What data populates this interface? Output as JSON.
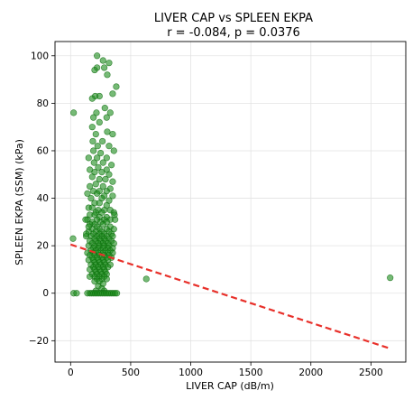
{
  "chart_data": {
    "type": "scatter",
    "title": "LIVER CAP vs SPLEEN EKPA",
    "subtitle": "r = -0.084, p = 0.0376",
    "xlabel": "LIVER CAP (dB/m)",
    "ylabel": "SPLEEN EKPA (SSM) (kPa)",
    "xlim": [
      -130,
      2790
    ],
    "ylim": [
      -29,
      106
    ],
    "xticks": [
      0,
      500,
      1000,
      1500,
      2000,
      2500
    ],
    "yticks": [
      -20,
      0,
      20,
      40,
      60,
      80,
      100
    ],
    "grid": true,
    "colors": {
      "points": "#1a8c1a",
      "trend": "#e8302a"
    },
    "trendline": {
      "x": [
        0,
        2660
      ],
      "y": [
        20.5,
        -23.3
      ],
      "style": "dashed"
    },
    "points": [
      [
        220,
        100
      ],
      [
        270,
        98
      ],
      [
        320,
        97
      ],
      [
        220,
        95
      ],
      [
        280,
        95
      ],
      [
        200,
        94
      ],
      [
        305,
        92
      ],
      [
        380,
        87
      ],
      [
        205,
        83
      ],
      [
        240,
        83
      ],
      [
        180,
        82
      ],
      [
        350,
        84
      ],
      [
        215,
        76
      ],
      [
        285,
        78
      ],
      [
        330,
        76
      ],
      [
        190,
        74
      ],
      [
        300,
        74
      ],
      [
        25,
        76
      ],
      [
        240,
        72
      ],
      [
        180,
        70
      ],
      [
        305,
        68
      ],
      [
        350,
        67
      ],
      [
        210,
        67
      ],
      [
        185,
        64
      ],
      [
        265,
        64
      ],
      [
        225,
        62
      ],
      [
        320,
        62
      ],
      [
        190,
        60
      ],
      [
        360,
        60
      ],
      [
        250,
        59
      ],
      [
        220,
        57
      ],
      [
        300,
        57
      ],
      [
        150,
        57
      ],
      [
        195,
        55
      ],
      [
        270,
        55
      ],
      [
        340,
        54
      ],
      [
        230,
        53
      ],
      [
        300,
        52
      ],
      [
        160,
        52
      ],
      [
        200,
        51
      ],
      [
        260,
        51
      ],
      [
        320,
        50
      ],
      [
        180,
        49
      ],
      [
        240,
        48
      ],
      [
        290,
        48
      ],
      [
        350,
        47
      ],
      [
        210,
        46
      ],
      [
        160,
        45
      ],
      [
        270,
        45
      ],
      [
        330,
        44
      ],
      [
        190,
        43
      ],
      [
        240,
        43
      ],
      [
        300,
        43
      ],
      [
        140,
        42
      ],
      [
        220,
        42
      ],
      [
        280,
        41
      ],
      [
        350,
        41
      ],
      [
        170,
        40
      ],
      [
        260,
        40
      ],
      [
        320,
        39
      ],
      [
        200,
        38
      ],
      [
        240,
        38
      ],
      [
        300,
        37
      ],
      [
        150,
        36
      ],
      [
        180,
        36
      ],
      [
        230,
        35
      ],
      [
        280,
        35
      ],
      [
        330,
        35
      ],
      [
        210,
        34
      ],
      [
        260,
        34
      ],
      [
        360,
        34
      ],
      [
        160,
        33
      ],
      [
        200,
        33
      ],
      [
        240,
        32
      ],
      [
        300,
        32
      ],
      [
        140,
        31
      ],
      [
        220,
        31
      ],
      [
        280,
        31
      ],
      [
        330,
        31
      ],
      [
        180,
        30
      ],
      [
        250,
        30
      ],
      [
        300,
        30
      ],
      [
        200,
        29
      ],
      [
        160,
        29
      ],
      [
        270,
        29
      ],
      [
        330,
        28
      ],
      [
        220,
        28
      ],
      [
        180,
        27
      ],
      [
        240,
        27
      ],
      [
        300,
        27
      ],
      [
        360,
        27
      ],
      [
        150,
        26
      ],
      [
        210,
        26
      ],
      [
        260,
        26
      ],
      [
        320,
        26
      ],
      [
        190,
        25
      ],
      [
        240,
        25
      ],
      [
        280,
        25
      ],
      [
        340,
        25
      ],
      [
        130,
        24
      ],
      [
        170,
        24
      ],
      [
        220,
        24
      ],
      [
        260,
        24
      ],
      [
        300,
        24
      ],
      [
        350,
        24
      ],
      [
        200,
        23
      ],
      [
        240,
        23
      ],
      [
        280,
        23
      ],
      [
        320,
        23
      ],
      [
        160,
        22
      ],
      [
        210,
        22
      ],
      [
        250,
        22
      ],
      [
        290,
        22
      ],
      [
        340,
        22
      ],
      [
        180,
        21
      ],
      [
        230,
        21
      ],
      [
        270,
        21
      ],
      [
        310,
        21
      ],
      [
        360,
        21
      ],
      [
        200,
        20
      ],
      [
        240,
        20
      ],
      [
        280,
        20
      ],
      [
        320,
        20
      ],
      [
        150,
        20
      ],
      [
        190,
        19
      ],
      [
        230,
        19
      ],
      [
        270,
        19
      ],
      [
        310,
        19
      ],
      [
        350,
        19
      ],
      [
        170,
        18
      ],
      [
        210,
        18
      ],
      [
        250,
        18
      ],
      [
        290,
        18
      ],
      [
        330,
        18
      ],
      [
        140,
        17
      ],
      [
        190,
        17
      ],
      [
        230,
        17
      ],
      [
        270,
        17
      ],
      [
        310,
        17
      ],
      [
        350,
        17
      ],
      [
        160,
        16
      ],
      [
        200,
        16
      ],
      [
        240,
        16
      ],
      [
        280,
        16
      ],
      [
        320,
        16
      ],
      [
        180,
        15
      ],
      [
        220,
        15
      ],
      [
        260,
        15
      ],
      [
        300,
        15
      ],
      [
        340,
        15
      ],
      [
        150,
        14
      ],
      [
        190,
        14
      ],
      [
        230,
        14
      ],
      [
        270,
        14
      ],
      [
        310,
        14
      ],
      [
        200,
        13
      ],
      [
        240,
        13
      ],
      [
        280,
        13
      ],
      [
        170,
        12
      ],
      [
        210,
        12
      ],
      [
        250,
        12
      ],
      [
        290,
        12
      ],
      [
        330,
        12
      ],
      [
        190,
        11
      ],
      [
        230,
        11
      ],
      [
        270,
        11
      ],
      [
        310,
        11
      ],
      [
        160,
        10
      ],
      [
        200,
        10
      ],
      [
        240,
        10
      ],
      [
        280,
        10
      ],
      [
        210,
        9
      ],
      [
        250,
        9
      ],
      [
        290,
        9
      ],
      [
        180,
        8
      ],
      [
        220,
        8
      ],
      [
        260,
        8
      ],
      [
        300,
        8
      ],
      [
        200,
        7
      ],
      [
        240,
        7
      ],
      [
        280,
        7
      ],
      [
        160,
        7
      ],
      [
        220,
        6
      ],
      [
        260,
        6
      ],
      [
        300,
        6
      ],
      [
        200,
        5
      ],
      [
        240,
        5
      ],
      [
        270,
        4
      ],
      [
        230,
        3
      ],
      [
        260,
        2
      ],
      [
        210,
        1
      ],
      [
        280,
        1
      ],
      [
        20,
        23
      ],
      [
        150,
        28
      ],
      [
        130,
        25
      ],
      [
        125,
        31
      ],
      [
        365,
        33
      ],
      [
        370,
        31
      ],
      [
        630,
        6
      ],
      [
        2660,
        6.5
      ],
      [
        25,
        0
      ],
      [
        50,
        0
      ],
      [
        140,
        0
      ],
      [
        160,
        0
      ],
      [
        175,
        0
      ],
      [
        190,
        0
      ],
      [
        205,
        0
      ],
      [
        220,
        0
      ],
      [
        235,
        0
      ],
      [
        250,
        0
      ],
      [
        265,
        0
      ],
      [
        280,
        0
      ],
      [
        295,
        0
      ],
      [
        310,
        0
      ],
      [
        325,
        0
      ],
      [
        340,
        0
      ],
      [
        355,
        0
      ],
      [
        370,
        0
      ],
      [
        385,
        0
      ]
    ]
  }
}
